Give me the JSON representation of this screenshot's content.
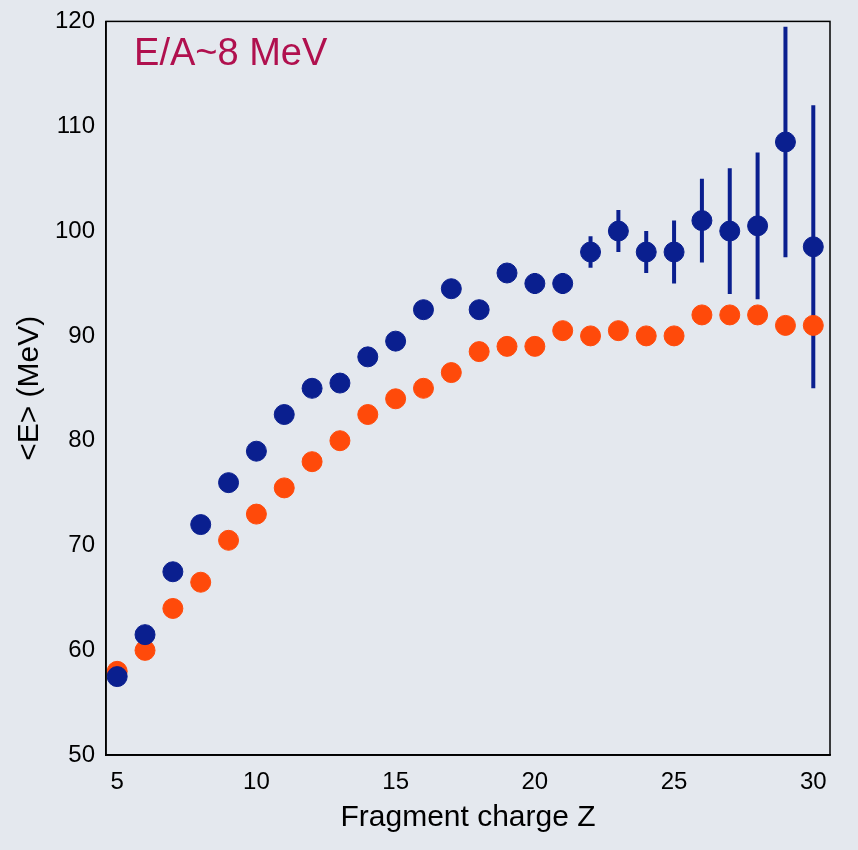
{
  "chart_data": {
    "type": "scatter",
    "annotations": [
      "E/A~8 MeV"
    ],
    "x_label": "Fragment charge Z",
    "y_label": "<E> (MeV)",
    "x": [
      5,
      6,
      7,
      8,
      9,
      10,
      11,
      12,
      13,
      14,
      15,
      16,
      17,
      18,
      19,
      20,
      21,
      22,
      23,
      24,
      25,
      26,
      27,
      28,
      29,
      30
    ],
    "series": [
      {
        "color": "#0a1f8f",
        "marker": "circle",
        "values": [
          57.5,
          61.5,
          67.5,
          72,
          76,
          79,
          82.5,
          85,
          85.5,
          88,
          89.5,
          92.5,
          94.5,
          92.5,
          96,
          95,
          95,
          98,
          100,
          98,
          98,
          101,
          100,
          100.5,
          108.5,
          98.5
        ],
        "errors": [
          0.5,
          0.5,
          0.5,
          0.5,
          0.5,
          0.5,
          0.5,
          0.5,
          0.5,
          0.5,
          0.5,
          0.5,
          0.7,
          0.8,
          0.8,
          1,
          1,
          1.5,
          2,
          2,
          3,
          4,
          6,
          7,
          11,
          13.5
        ]
      },
      {
        "color": "#ff4a0a",
        "marker": "circle",
        "values": [
          58,
          60,
          64,
          66.5,
          70.5,
          73,
          75.5,
          78,
          80,
          82.5,
          84,
          85,
          86.5,
          88.5,
          89,
          89,
          90.5,
          90,
          90.5,
          90,
          90,
          92,
          92,
          92,
          91,
          91
        ]
      }
    ],
    "xlim": [
      4.6,
      30.6
    ],
    "xticks": [
      5,
      10,
      15,
      20,
      25,
      30
    ],
    "ylim": [
      50,
      120
    ],
    "yticks": [
      50,
      60,
      70,
      80,
      90,
      100,
      110,
      120
    ],
    "grid": false
  }
}
